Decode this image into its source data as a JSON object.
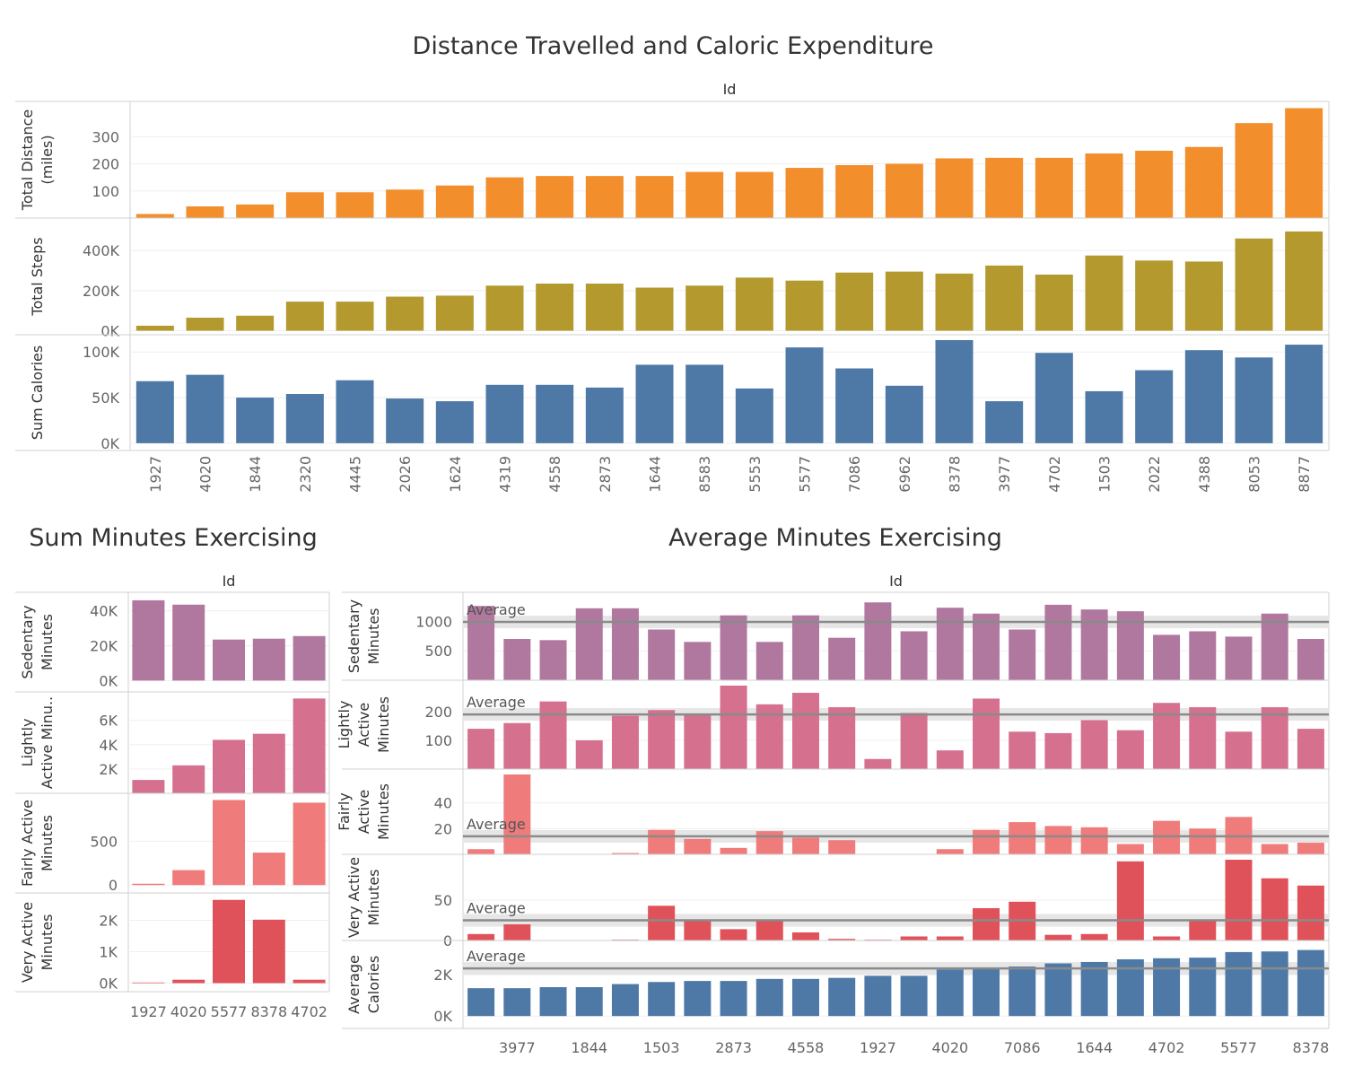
{
  "titles": {
    "top": "Distance Travelled and Caloric Expenditure",
    "sum": "Sum Minutes Exercising",
    "avg": "Average Minutes Exercising"
  },
  "colors": {
    "distance": "#f28e2b",
    "steps": "#b3992e",
    "calories": "#4e79a7",
    "sedentary": "#b0789f",
    "lightly": "#d5708f",
    "fairly": "#f07b7b",
    "very": "#e0525a"
  },
  "chart_data": [
    {
      "type": "bar",
      "title": "Distance Travelled and Caloric Expenditure",
      "header": "Id",
      "categories": [
        "1927",
        "4020",
        "1844",
        "2320",
        "4445",
        "2026",
        "1624",
        "4319",
        "4558",
        "2873",
        "1644",
        "8583",
        "5553",
        "5577",
        "7086",
        "6962",
        "8378",
        "3977",
        "4702",
        "1503",
        "2022",
        "4388",
        "8053",
        "8877"
      ],
      "rows": [
        {
          "name": "Total Distance (miles)",
          "label_lines": [
            "Total Distance",
            "(miles)"
          ],
          "color": "distance",
          "ylim": [
            0,
            410
          ],
          "ticks": [
            {
              "v": 100,
              "t": "100"
            },
            {
              "v": 200,
              "t": "200"
            },
            {
              "v": 300,
              "t": "300"
            }
          ],
          "values": [
            15,
            43,
            50,
            95,
            95,
            105,
            120,
            150,
            155,
            155,
            155,
            170,
            170,
            185,
            195,
            200,
            220,
            222,
            222,
            238,
            248,
            262,
            350,
            405
          ]
        },
        {
          "name": "Total Steps",
          "label_lines": [
            "Total Steps"
          ],
          "color": "steps",
          "ylim": [
            -20000,
            535000
          ],
          "ticks": [
            {
              "v": 0,
              "t": "0K"
            },
            {
              "v": 200000,
              "t": "200K"
            },
            {
              "v": 400000,
              "t": "400K"
            }
          ],
          "values": [
            25000,
            65000,
            75000,
            145000,
            145000,
            170000,
            175000,
            225000,
            235000,
            235000,
            215000,
            225000,
            265000,
            250000,
            290000,
            295000,
            285000,
            325000,
            280000,
            375000,
            350000,
            345000,
            460000,
            495000
          ]
        },
        {
          "name": "Sum Calories",
          "label_lines": [
            "Sum Calories"
          ],
          "color": "calories",
          "ylim": [
            -8000,
            113000
          ],
          "ticks": [
            {
              "v": 0,
              "t": "0K"
            },
            {
              "v": 50000,
              "t": "50K"
            },
            {
              "v": 100000,
              "t": "100K"
            }
          ],
          "values": [
            68000,
            75000,
            50000,
            54000,
            69000,
            49000,
            46000,
            64000,
            64000,
            61000,
            86000,
            86000,
            60000,
            105000,
            82000,
            63000,
            114000,
            46000,
            99000,
            57000,
            80000,
            102000,
            94000,
            108000
          ]
        }
      ]
    },
    {
      "type": "bar",
      "title": "Sum Minutes Exercising",
      "header": "Id",
      "categories": [
        "1927",
        "4020",
        "5577",
        "8378",
        "4702"
      ],
      "rows": [
        {
          "name": "Sedentary Minutes",
          "label_lines": [
            "Sedentary",
            "Minutes"
          ],
          "color": "sedentary",
          "ylim": [
            -6500,
            47500
          ],
          "ticks": [
            {
              "v": 0,
              "t": "0K"
            },
            {
              "v": 20000,
              "t": "20K"
            },
            {
              "v": 40000,
              "t": "40K"
            }
          ],
          "values": [
            46000,
            43500,
            23500,
            24000,
            25500
          ]
        },
        {
          "name": "Lightly Active Minutes",
          "label_lines": [
            "Lightly",
            "Active Minu.."
          ],
          "color": "lightly",
          "ylim": [
            0,
            7900
          ],
          "ticks": [
            {
              "v": 2000,
              "t": "2K"
            },
            {
              "v": 4000,
              "t": "4K"
            },
            {
              "v": 6000,
              "t": "6K"
            }
          ],
          "values": [
            1100,
            2300,
            4400,
            4900,
            7800
          ]
        },
        {
          "name": "Fairly Active Minutes",
          "label_lines": [
            "Fairly Active",
            "Minutes"
          ],
          "color": "fairly",
          "ylim": [
            -90,
            985
          ],
          "ticks": [
            {
              "v": 0,
              "t": "0"
            },
            {
              "v": 500,
              "t": "500"
            }
          ],
          "values": [
            15,
            170,
            970,
            370,
            940
          ]
        },
        {
          "name": "Very Active Minutes",
          "label_lines": [
            "Very Active",
            "Minutes"
          ],
          "color": "very",
          "ylim": [
            -270,
            2700
          ],
          "ticks": [
            {
              "v": 0,
              "t": "0K"
            },
            {
              "v": 1000,
              "t": "1K"
            },
            {
              "v": 2000,
              "t": "2K"
            }
          ],
          "values": [
            20,
            110,
            2650,
            2020,
            110
          ]
        }
      ]
    },
    {
      "type": "bar",
      "title": "Average Minutes Exercising",
      "header": "Id",
      "categories": [
        "?",
        "3977",
        "?",
        "1844",
        "?",
        "1503",
        "?",
        "2873",
        "?",
        "4558",
        "?",
        "1927",
        "?",
        "4020",
        "?",
        "7086",
        "?",
        "1644",
        "?",
        "4702",
        "?",
        "5577",
        "?",
        "8378"
      ],
      "x_tick_labels": [
        "3977",
        "1844",
        "1503",
        "2873",
        "4558",
        "1927",
        "4020",
        "7086",
        "1644",
        "4702",
        "5577",
        "8378"
      ],
      "rows": [
        {
          "name": "Sedentary Minutes",
          "label_lines": [
            "Sedentary",
            "Minutes"
          ],
          "color": "sedentary",
          "ylim": [
            0,
            1400
          ],
          "ticks": [
            {
              "v": 500,
              "t": "500"
            },
            {
              "v": 1000,
              "t": "1000"
            }
          ],
          "average": 990,
          "average_label": "Average",
          "values": [
            1260,
            700,
            680,
            1220,
            1220,
            860,
            650,
            1100,
            650,
            1100,
            720,
            1320,
            830,
            1230,
            1130,
            860,
            1280,
            1200,
            1170,
            770,
            830,
            740,
            1130,
            700
          ]
        },
        {
          "name": "Lightly Active Minutes",
          "label_lines": [
            "Lightly",
            "Active",
            "Minutes"
          ],
          "color": "lightly",
          "ylim": [
            0,
            290
          ],
          "ticks": [
            {
              "v": 100,
              "t": "100"
            },
            {
              "v": 200,
              "t": "200"
            }
          ],
          "average": 190,
          "average_label": "Average",
          "values": [
            140,
            160,
            235,
            100,
            185,
            205,
            190,
            290,
            225,
            265,
            215,
            35,
            195,
            65,
            245,
            130,
            125,
            170,
            135,
            230,
            215,
            130,
            215,
            140
          ]
        },
        {
          "name": "Fairly Active Minutes",
          "label_lines": [
            "Fairly",
            "Active",
            "Minutes"
          ],
          "color": "fairly",
          "ylim": [
            0,
            62
          ],
          "ticks": [
            {
              "v": 20,
              "t": "20"
            },
            {
              "v": 40,
              "t": "40"
            }
          ],
          "average": 14,
          "average_label": "Average",
          "values": [
            4,
            62,
            0,
            0,
            1,
            19,
            12,
            5,
            18,
            13,
            11,
            0,
            0,
            4,
            19,
            25,
            22,
            21,
            8,
            26,
            20,
            29,
            8,
            9
          ]
        },
        {
          "name": "Very Active Minutes",
          "label_lines": [
            "Very Active",
            "Minutes"
          ],
          "color": "very",
          "ylim": [
            0,
            100
          ],
          "ticks": [
            {
              "v": 0,
              "t": "0"
            },
            {
              "v": 50,
              "t": "50"
            }
          ],
          "average": 25,
          "average_label": "Average",
          "values": [
            8,
            20,
            0,
            0,
            1,
            43,
            25,
            14,
            25,
            10,
            2,
            1,
            5,
            5,
            40,
            48,
            7,
            8,
            98,
            5,
            25,
            100,
            77,
            68
          ]
        },
        {
          "name": "Average Calories",
          "label_lines": [
            "Average",
            "Calories"
          ],
          "color": "calories",
          "ylim": [
            -600,
            3400
          ],
          "ticks": [
            {
              "v": 0,
              "t": "0K"
            },
            {
              "v": 2000,
              "t": "2K"
            }
          ],
          "average": 2310,
          "average_label": "Average",
          "values": [
            1350,
            1350,
            1400,
            1400,
            1550,
            1650,
            1700,
            1700,
            1800,
            1800,
            1850,
            1950,
            1950,
            2250,
            2330,
            2400,
            2550,
            2620,
            2750,
            2800,
            2830,
            3100,
            3130,
            3200
          ]
        }
      ]
    }
  ]
}
